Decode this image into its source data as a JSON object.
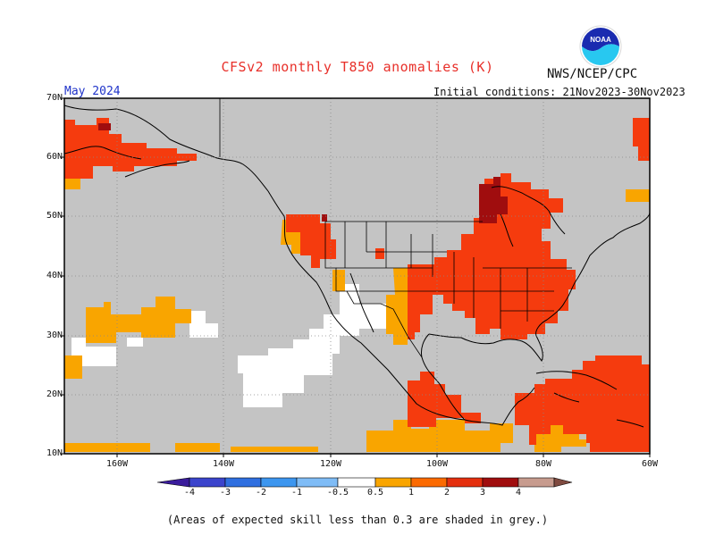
{
  "title": "CFSv2 monthly T850 anomalies (K)",
  "org": "NWS/NCEP/CPC",
  "logo_text": "NOAA",
  "month": "May 2024",
  "initial_conditions": "Initial conditions: 21Nov2023-30Nov2023",
  "lat_labels": [
    "70N",
    "60N",
    "50N",
    "40N",
    "30N",
    "20N",
    "10N"
  ],
  "lon_labels": [
    "160W",
    "140W",
    "120W",
    "100W",
    "80W",
    "60W"
  ],
  "colorbar": {
    "ticks": [
      "-4",
      "-3",
      "-2",
      "-1",
      "-0.5",
      "0.5",
      "1",
      "2",
      "3",
      "4"
    ],
    "colors": [
      "#3a1c9c",
      "#3b44cc",
      "#2f6fe0",
      "#3c96ef",
      "#7fbcf6",
      "#ffffff",
      "#f9a500",
      "#fb6a00",
      "#e42f0e",
      "#a00d0e",
      "#c79b8e",
      "#7f4a40"
    ]
  },
  "note": "(Areas of expected skill less than 0.3 are shaded in grey.)",
  "map_colors": {
    "grey": "#c4c4c4",
    "white": "#ffffff",
    "orange": "#f9a500",
    "red_orange": "#f53b0e",
    "dark_red": "#a00d0e",
    "coast": "#000000",
    "border": "#000000"
  }
}
